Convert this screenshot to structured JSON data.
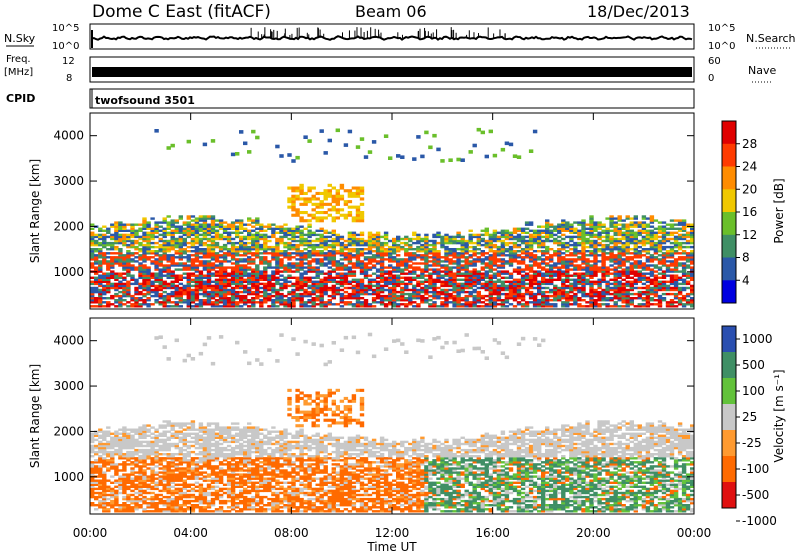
{
  "header": {
    "title": "Dome C East (fitACF)",
    "beam": "Beam 06",
    "date": "18/Dec/2013"
  },
  "top_panels": {
    "nsky_label": "N.Sky",
    "nsearch_label": "N.Search",
    "nsky_ticks": [
      "10^5",
      "10^0"
    ],
    "nsearch_ticks": [
      "10^5",
      "10^0"
    ],
    "freq_label_1": "Freq.",
    "freq_label_2": "[MHz]",
    "freq_ticks": [
      "12",
      "8"
    ],
    "nave_label": "Nave",
    "nave_ticks": [
      "60",
      "0"
    ],
    "cpid_label": "CPID",
    "cpid_value": "twofsound 3501"
  },
  "chart_data": [
    {
      "type": "heatmap",
      "name": "power",
      "ylabel": "Slant Range [km]",
      "ylim": [
        180,
        4500
      ],
      "yticks": [
        "1000",
        "2000",
        "3000",
        "4000"
      ],
      "xlim": [
        0,
        24
      ],
      "colorbar": {
        "label": "Power [dB]",
        "ticks": [
          "28",
          "24",
          "20",
          "16",
          "12",
          "8",
          "4"
        ],
        "colors": [
          "#e00000",
          "#ff3b00",
          "#ff8c00",
          "#f0c800",
          "#6abf2a",
          "#3f8f65",
          "#2a58a8",
          "#0000e0"
        ]
      }
    },
    {
      "type": "heatmap",
      "name": "velocity",
      "ylabel": "Slant Range [km]",
      "ylim": [
        180,
        4500
      ],
      "yticks": [
        "1000",
        "2000",
        "3000",
        "4000"
      ],
      "xlim": [
        0,
        24
      ],
      "colorbar": {
        "label": "Velocity [m s⁻¹]",
        "ticks": [
          "1000",
          "500",
          "100",
          "25",
          "-25",
          "-100",
          "-500",
          "-1000"
        ],
        "colors": [
          "#2a4fb0",
          "#3f8f65",
          "#62c23a",
          "#c8c8c8",
          "#ff9a30",
          "#ff6a00",
          "#e01010"
        ]
      }
    }
  ],
  "x_axis": {
    "ticks": [
      "00:00",
      "04:00",
      "08:00",
      "12:00",
      "16:00",
      "20:00",
      "00:00"
    ],
    "label": "Time UT"
  }
}
